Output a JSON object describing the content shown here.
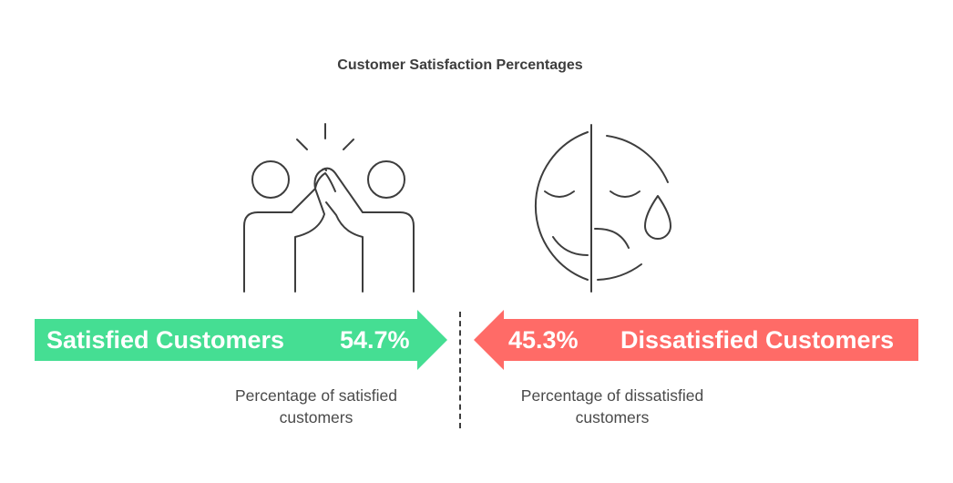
{
  "title": "Customer Satisfaction Percentages",
  "satisfied": {
    "label": "Satisfied Customers",
    "percent_label": "54.7%",
    "description": "Percentage of satisfied customers",
    "color": "#45DE93",
    "icon": "high-five-icon"
  },
  "dissatisfied": {
    "label": "Dissatisfied Customers",
    "percent_label": "45.3%",
    "description": "Percentage of dissatisfied customers",
    "color": "#FF6B67",
    "icon": "sad-face-icon"
  }
}
